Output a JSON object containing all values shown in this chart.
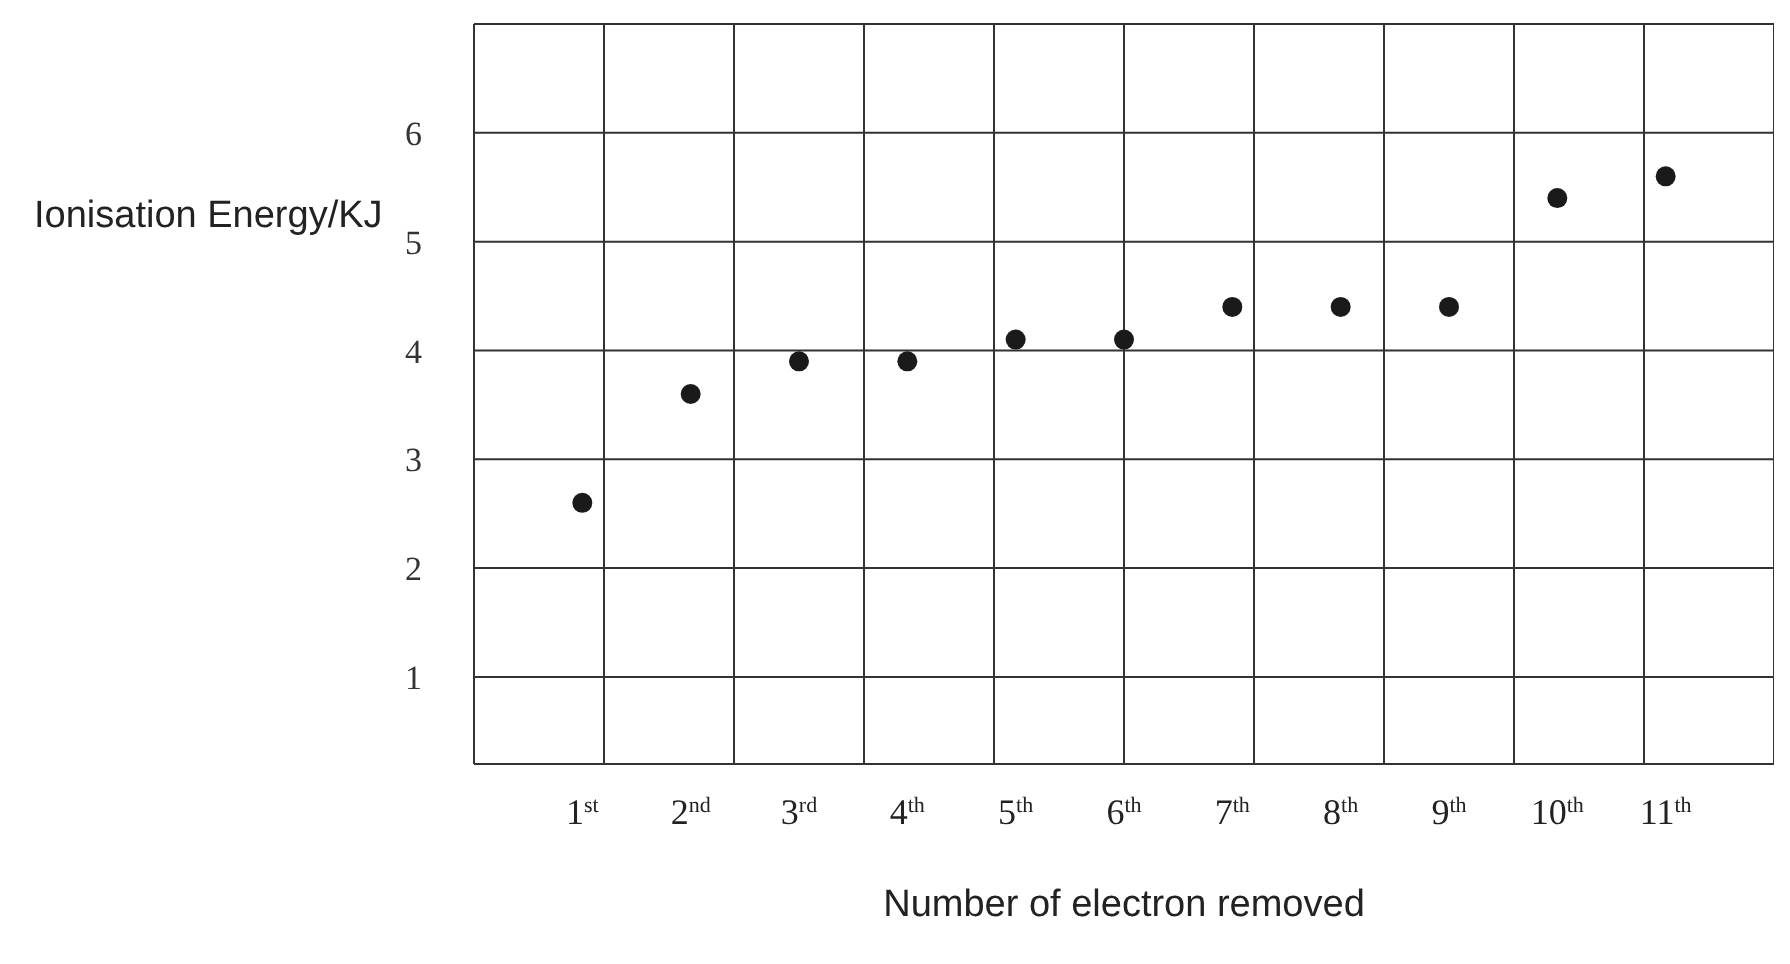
{
  "chart_data": {
    "type": "scatter",
    "xlabel": "Number of electron removed",
    "ylabel": "Ionisation Energy/KJ",
    "categories": [
      "1$^{st}$",
      "2$^{nd}$",
      "3$^{rd}$",
      "4$^{th}$",
      "5$^{th}$",
      "6$^{th}$",
      "7$^{th}$",
      "8$^{th}$",
      "9$^{th}$",
      "10$^{th}$",
      "11$^{th}$"
    ],
    "values": [
      2.6,
      3.6,
      3.9,
      3.9,
      4.1,
      4.1,
      4.4,
      4.4,
      4.4,
      5.4,
      5.6
    ],
    "color": "#1a1a1a",
    "marker": "circle",
    "ylim": [
      0.2,
      7
    ],
    "yticks": [
      1,
      2,
      3,
      4,
      5,
      6
    ],
    "grid": true
  }
}
